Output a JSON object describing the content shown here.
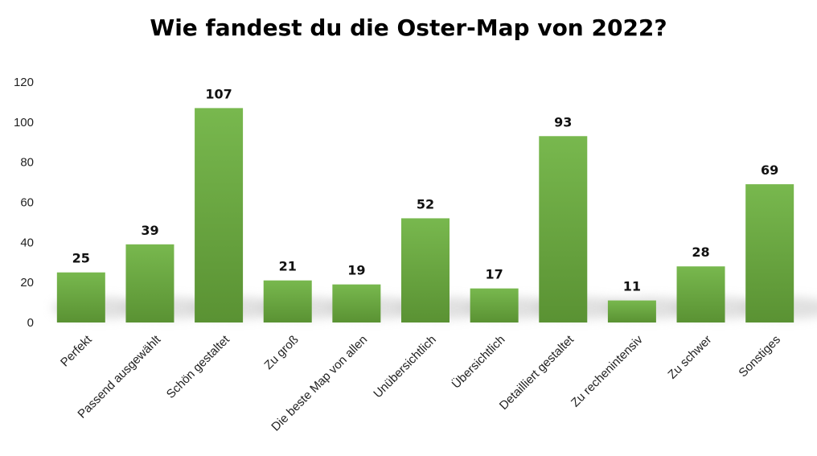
{
  "chart_data": {
    "type": "bar",
    "title": "Wie fandest du die Oster-Map von 2022?",
    "xlabel": "",
    "ylabel": "",
    "ylim": [
      0,
      120
    ],
    "yticks": [
      0,
      20,
      40,
      60,
      80,
      100,
      120
    ],
    "grid": false,
    "categories": [
      "Perfekt",
      "Passend ausgewählt",
      "Schön gestaltet",
      "Zu groß",
      "Die beste Map von allen",
      "Unübersichtlich",
      "Übersichtlich",
      "Detailliert gestaltet",
      "Zu rechenintensiv",
      "Zu schwer",
      "Sonstiges"
    ],
    "values": [
      25,
      39,
      107,
      21,
      19,
      52,
      17,
      93,
      11,
      28,
      69
    ],
    "data_labels": [
      "25",
      "39",
      "107",
      "21",
      "19",
      "52",
      "17",
      "93",
      "11",
      "28",
      "69"
    ],
    "colors": {
      "bar_top": "#78b84e",
      "bar_bottom": "#5a9233",
      "shadow": "#c8c8c8"
    }
  }
}
